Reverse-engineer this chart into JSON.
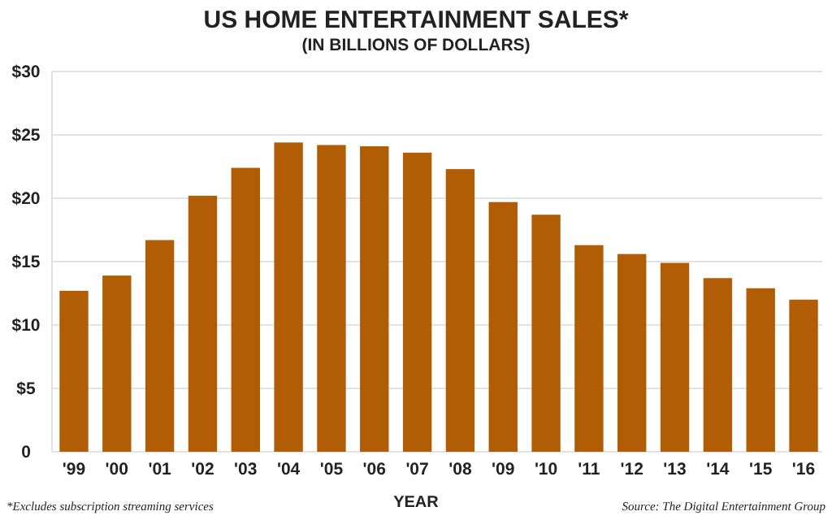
{
  "chart_data": {
    "type": "bar",
    "title": "US HOME ENTERTAINMENT SALES*",
    "subtitle": "(IN BILLIONS OF DOLLARS)",
    "xlabel": "YEAR",
    "categories": [
      "'99",
      "'00",
      "'01",
      "'02",
      "'03",
      "'04",
      "'05",
      "'06",
      "'07",
      "'08",
      "'09",
      "'10",
      "'11",
      "'12",
      "'13",
      "'14",
      "'15",
      "'16"
    ],
    "values": [
      12.7,
      13.9,
      16.7,
      20.2,
      22.4,
      24.4,
      24.2,
      24.1,
      23.6,
      22.3,
      19.7,
      18.7,
      16.3,
      15.6,
      14.9,
      13.7,
      12.9,
      12.0
    ],
    "color": "#b15d05",
    "ylim": [
      0,
      30
    ],
    "yticks": [
      {
        "value": 0,
        "label": "0"
      },
      {
        "value": 5,
        "label": "$5"
      },
      {
        "value": 10,
        "label": "$10"
      },
      {
        "value": 15,
        "label": "$15"
      },
      {
        "value": 20,
        "label": "$20"
      },
      {
        "value": 25,
        "label": "$25"
      },
      {
        "value": 30,
        "label": "$30"
      }
    ],
    "grid": "y",
    "annotations": [
      "*Excludes subscription streaming services",
      "Source: The Digital Entertainment Group"
    ]
  }
}
